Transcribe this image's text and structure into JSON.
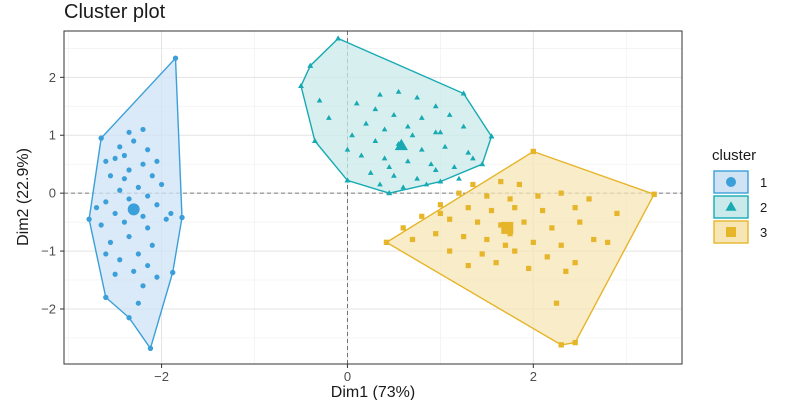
{
  "chart_data": {
    "type": "scatter",
    "title": "Cluster plot",
    "xlabel": "Dim1 (73%)",
    "ylabel": "Dim2 (22.9%)",
    "xlim": [
      -3.05,
      3.6
    ],
    "ylim": [
      -2.95,
      2.8
    ],
    "x_ticks": [
      -2,
      0,
      2
    ],
    "y_ticks": [
      -2,
      -1,
      0,
      1,
      2
    ],
    "grid": true,
    "legend": {
      "title": "cluster",
      "position": "right"
    },
    "series": [
      {
        "name": "1",
        "marker": "circle",
        "color": "#3b9fd9",
        "fill": "#cfe3f5",
        "hull": [
          [
            -1.85,
            2.33
          ],
          [
            -1.78,
            -0.42
          ],
          [
            -1.88,
            -1.37
          ],
          [
            -2.12,
            -2.68
          ],
          [
            -2.35,
            -2.15
          ],
          [
            -2.6,
            -1.8
          ],
          [
            -2.78,
            -0.45
          ],
          [
            -2.65,
            0.95
          ]
        ],
        "centroid": [
          -2.3,
          -0.28
        ],
        "points": [
          [
            -1.85,
            2.33
          ],
          [
            -2.12,
            -2.68
          ],
          [
            -2.78,
            -0.45
          ],
          [
            -2.6,
            -1.8
          ],
          [
            -2.65,
            0.95
          ],
          [
            -1.78,
            -0.42
          ],
          [
            -1.88,
            -1.37
          ],
          [
            -2.35,
            -2.15
          ],
          [
            -2.25,
            -1.9
          ],
          [
            -2.2,
            1.1
          ],
          [
            -2.35,
            1.05
          ],
          [
            -2.3,
            0.9
          ],
          [
            -2.45,
            0.8
          ],
          [
            -2.15,
            0.75
          ],
          [
            -2.05,
            0.55
          ],
          [
            -2.5,
            0.6
          ],
          [
            -2.2,
            0.5
          ],
          [
            -2.6,
            0.55
          ],
          [
            -2.35,
            0.4
          ],
          [
            -2.1,
            0.3
          ],
          [
            -2.4,
            0.25
          ],
          [
            -2.55,
            0.3
          ],
          [
            -2.0,
            0.15
          ],
          [
            -2.25,
            0.1
          ],
          [
            -2.45,
            0.05
          ],
          [
            -2.15,
            -0.05
          ],
          [
            -2.35,
            -0.1
          ],
          [
            -2.6,
            -0.15
          ],
          [
            -2.05,
            -0.2
          ],
          [
            -2.3,
            -0.3
          ],
          [
            -2.5,
            -0.35
          ],
          [
            -2.2,
            -0.4
          ],
          [
            -1.9,
            -0.35
          ],
          [
            -2.4,
            -0.5
          ],
          [
            -2.65,
            -0.55
          ],
          [
            -2.15,
            -0.6
          ],
          [
            -2.35,
            -0.75
          ],
          [
            -2.55,
            -0.85
          ],
          [
            -2.1,
            -0.9
          ],
          [
            -2.25,
            -1.05
          ],
          [
            -2.45,
            -1.15
          ],
          [
            -2.15,
            -1.25
          ],
          [
            -2.3,
            -1.35
          ],
          [
            -2.05,
            -1.45
          ],
          [
            -2.5,
            -1.4
          ],
          [
            -2.2,
            -1.6
          ],
          [
            -1.95,
            -0.45
          ],
          [
            -2.6,
            -1.05
          ],
          [
            -2.4,
            0.65
          ],
          [
            -2.7,
            -0.25
          ]
        ]
      },
      {
        "name": "2",
        "marker": "triangle",
        "color": "#17aab3",
        "fill": "#c9e9ea",
        "hull": [
          [
            -0.1,
            2.67
          ],
          [
            1.25,
            1.72
          ],
          [
            1.55,
            0.98
          ],
          [
            1.45,
            0.5
          ],
          [
            1.0,
            0.2
          ],
          [
            0.45,
            0.0
          ],
          [
            0.0,
            0.22
          ],
          [
            -0.35,
            0.9
          ],
          [
            -0.5,
            1.85
          ],
          [
            -0.4,
            2.2
          ]
        ],
        "centroid": [
          0.58,
          0.82
        ],
        "points": [
          [
            -0.1,
            2.67
          ],
          [
            -0.5,
            1.85
          ],
          [
            -0.4,
            2.2
          ],
          [
            1.25,
            1.72
          ],
          [
            1.55,
            0.98
          ],
          [
            1.45,
            0.5
          ],
          [
            1.0,
            0.2
          ],
          [
            0.45,
            0.0
          ],
          [
            0.0,
            0.22
          ],
          [
            -0.35,
            0.9
          ],
          [
            0.35,
            1.7
          ],
          [
            0.55,
            1.75
          ],
          [
            0.75,
            1.65
          ],
          [
            0.95,
            1.5
          ],
          [
            0.1,
            1.55
          ],
          [
            0.3,
            1.45
          ],
          [
            0.5,
            1.35
          ],
          [
            0.8,
            1.3
          ],
          [
            1.1,
            1.35
          ],
          [
            0.2,
            1.2
          ],
          [
            0.4,
            1.1
          ],
          [
            0.65,
            1.15
          ],
          [
            0.95,
            1.05
          ],
          [
            1.25,
            1.15
          ],
          [
            0.05,
            1.0
          ],
          [
            0.3,
            0.9
          ],
          [
            0.55,
            0.85
          ],
          [
            0.8,
            0.75
          ],
          [
            1.05,
            0.8
          ],
          [
            1.3,
            0.7
          ],
          [
            0.15,
            0.65
          ],
          [
            0.4,
            0.6
          ],
          [
            0.65,
            0.55
          ],
          [
            0.9,
            0.5
          ],
          [
            1.15,
            0.45
          ],
          [
            0.25,
            0.35
          ],
          [
            0.5,
            0.3
          ],
          [
            0.75,
            0.25
          ],
          [
            0.95,
            0.4
          ],
          [
            1.35,
            0.6
          ],
          [
            0.6,
            0.1
          ],
          [
            0.85,
            0.15
          ],
          [
            1.2,
            0.25
          ],
          [
            0.35,
            0.15
          ],
          [
            0.0,
            0.75
          ],
          [
            -0.2,
            1.3
          ],
          [
            -0.3,
            1.6
          ],
          [
            0.7,
            1.0
          ],
          [
            1.0,
            1.05
          ],
          [
            0.45,
            0.45
          ]
        ]
      },
      {
        "name": "3",
        "marker": "square",
        "color": "#e6b52a",
        "fill": "#f7e6b5",
        "hull": [
          [
            2.0,
            0.72
          ],
          [
            3.3,
            -0.02
          ],
          [
            2.45,
            -2.58
          ],
          [
            2.3,
            -2.62
          ],
          [
            0.42,
            -0.85
          ]
        ],
        "centroid": [
          1.72,
          -0.6
        ],
        "points": [
          [
            2.0,
            0.72
          ],
          [
            3.3,
            -0.02
          ],
          [
            2.45,
            -2.58
          ],
          [
            2.3,
            -2.62
          ],
          [
            0.42,
            -0.85
          ],
          [
            1.35,
            0.15
          ],
          [
            1.65,
            0.2
          ],
          [
            1.85,
            0.15
          ],
          [
            1.2,
            0.0
          ],
          [
            1.5,
            -0.05
          ],
          [
            1.75,
            -0.1
          ],
          [
            2.05,
            -0.05
          ],
          [
            2.3,
            0.0
          ],
          [
            2.6,
            -0.1
          ],
          [
            1.0,
            -0.2
          ],
          [
            1.3,
            -0.25
          ],
          [
            1.55,
            -0.3
          ],
          [
            1.8,
            -0.25
          ],
          [
            2.1,
            -0.3
          ],
          [
            2.45,
            -0.25
          ],
          [
            2.9,
            -0.35
          ],
          [
            0.8,
            -0.4
          ],
          [
            1.1,
            -0.45
          ],
          [
            1.4,
            -0.5
          ],
          [
            1.65,
            -0.55
          ],
          [
            1.9,
            -0.5
          ],
          [
            2.2,
            -0.6
          ],
          [
            2.5,
            -0.5
          ],
          [
            0.95,
            -0.7
          ],
          [
            1.25,
            -0.75
          ],
          [
            1.5,
            -0.8
          ],
          [
            1.75,
            -0.7
          ],
          [
            2.0,
            -0.85
          ],
          [
            2.3,
            -0.9
          ],
          [
            2.65,
            -0.8
          ],
          [
            1.1,
            -1.0
          ],
          [
            1.45,
            -1.05
          ],
          [
            1.8,
            -1.0
          ],
          [
            2.15,
            -1.1
          ],
          [
            2.45,
            -1.2
          ],
          [
            2.8,
            -0.85
          ],
          [
            1.3,
            -1.25
          ],
          [
            1.6,
            -1.2
          ],
          [
            1.95,
            -1.3
          ],
          [
            2.35,
            -1.35
          ],
          [
            0.6,
            -0.6
          ],
          [
            0.7,
            -0.8
          ],
          [
            2.25,
            -1.9
          ],
          [
            1.0,
            -0.35
          ],
          [
            1.7,
            -0.9
          ]
        ]
      }
    ]
  }
}
